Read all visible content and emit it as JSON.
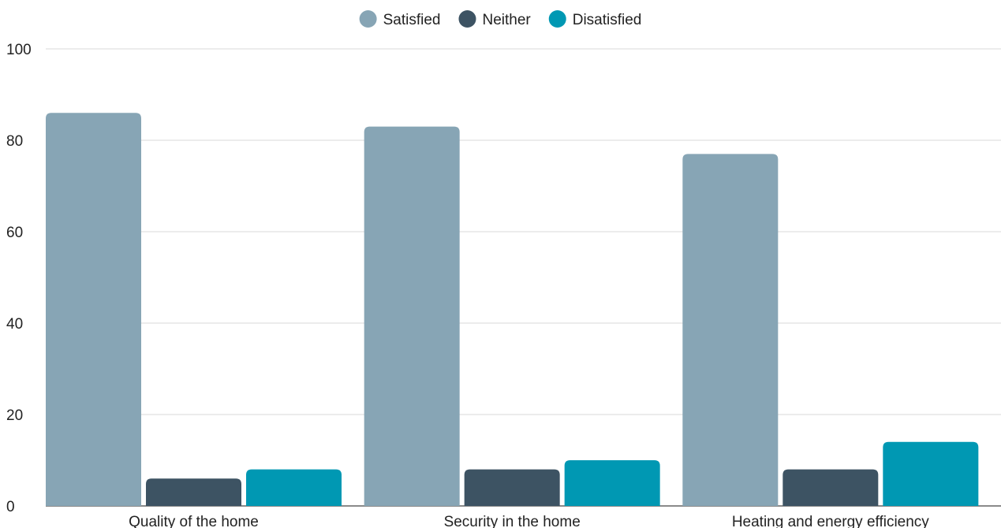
{
  "chart_data": {
    "type": "bar",
    "title": "",
    "xlabel": "",
    "ylabel": "",
    "categories": [
      "Quality of the home",
      "Security in the home",
      "Heating and energy efficiency"
    ],
    "series": [
      {
        "name": "Satisfied",
        "color": "#87a5b5",
        "values": [
          86,
          83,
          77
        ]
      },
      {
        "name": "Neither",
        "color": "#3d5363",
        "values": [
          6,
          8,
          8
        ]
      },
      {
        "name": "Disatisfied",
        "color": "#0098b3",
        "values": [
          8,
          10,
          14
        ]
      }
    ],
    "ylim": [
      0,
      100
    ],
    "yticks": [
      "0",
      "20",
      "40",
      "60",
      "80",
      "100"
    ],
    "grid": true,
    "legend_position": "top-center"
  }
}
